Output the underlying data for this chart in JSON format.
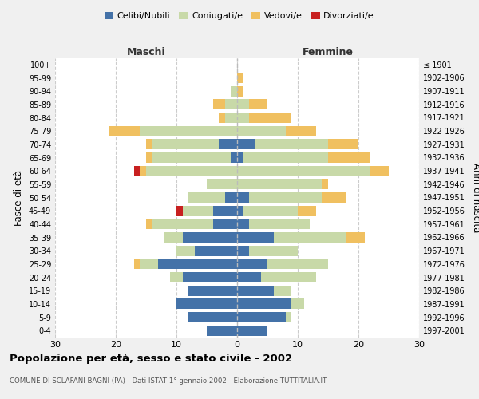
{
  "age_groups": [
    "0-4",
    "5-9",
    "10-14",
    "15-19",
    "20-24",
    "25-29",
    "30-34",
    "35-39",
    "40-44",
    "45-49",
    "50-54",
    "55-59",
    "60-64",
    "65-69",
    "70-74",
    "75-79",
    "80-84",
    "85-89",
    "90-94",
    "95-99",
    "100+"
  ],
  "birth_years": [
    "1997-2001",
    "1992-1996",
    "1987-1991",
    "1982-1986",
    "1977-1981",
    "1972-1976",
    "1967-1971",
    "1962-1966",
    "1957-1961",
    "1952-1956",
    "1947-1951",
    "1942-1946",
    "1937-1941",
    "1932-1936",
    "1927-1931",
    "1922-1926",
    "1917-1921",
    "1912-1916",
    "1907-1911",
    "1902-1906",
    "≤ 1901"
  ],
  "maschi": {
    "celibi": [
      5,
      8,
      10,
      8,
      9,
      13,
      7,
      9,
      4,
      4,
      2,
      0,
      0,
      1,
      3,
      0,
      0,
      0,
      0,
      0,
      0
    ],
    "coniugati": [
      0,
      0,
      0,
      0,
      2,
      3,
      3,
      3,
      10,
      5,
      6,
      5,
      15,
      13,
      11,
      16,
      2,
      2,
      1,
      0,
      0
    ],
    "vedovi": [
      0,
      0,
      0,
      0,
      0,
      1,
      0,
      0,
      1,
      0,
      0,
      0,
      1,
      1,
      1,
      5,
      1,
      2,
      0,
      0,
      0
    ],
    "divorziati": [
      0,
      0,
      0,
      0,
      0,
      0,
      0,
      0,
      0,
      1,
      0,
      0,
      1,
      0,
      0,
      0,
      0,
      0,
      0,
      0,
      0
    ]
  },
  "femmine": {
    "nubili": [
      5,
      8,
      9,
      6,
      4,
      5,
      2,
      6,
      2,
      1,
      2,
      0,
      0,
      1,
      3,
      0,
      0,
      0,
      0,
      0,
      0
    ],
    "coniugate": [
      0,
      1,
      2,
      3,
      9,
      10,
      8,
      12,
      10,
      9,
      12,
      14,
      22,
      14,
      12,
      8,
      2,
      2,
      0,
      0,
      0
    ],
    "vedove": [
      0,
      0,
      0,
      0,
      0,
      0,
      0,
      3,
      0,
      3,
      4,
      1,
      3,
      7,
      5,
      5,
      7,
      3,
      1,
      1,
      0
    ],
    "divorziate": [
      0,
      0,
      0,
      0,
      0,
      0,
      0,
      0,
      0,
      0,
      0,
      0,
      0,
      0,
      0,
      0,
      0,
      0,
      0,
      0,
      0
    ]
  },
  "colors": {
    "celibi_nubili": "#4472a8",
    "coniugati": "#c8d9a8",
    "vedovi": "#f0c060",
    "divorziati": "#c82020"
  },
  "xlim": 30,
  "title": "Popolazione per età, sesso e stato civile - 2002",
  "subtitle": "COMUNE DI SCLAFANI BAGNI (PA) - Dati ISTAT 1° gennaio 2002 - Elaborazione TUTTITALIA.IT",
  "ylabel_left": "Fasce di età",
  "ylabel_right": "Anni di nascita",
  "legend_labels": [
    "Celibi/Nubili",
    "Coniugati/e",
    "Vedovi/e",
    "Divorziati/e"
  ],
  "bg_color": "#f0f0f0",
  "plot_bg": "#ffffff"
}
